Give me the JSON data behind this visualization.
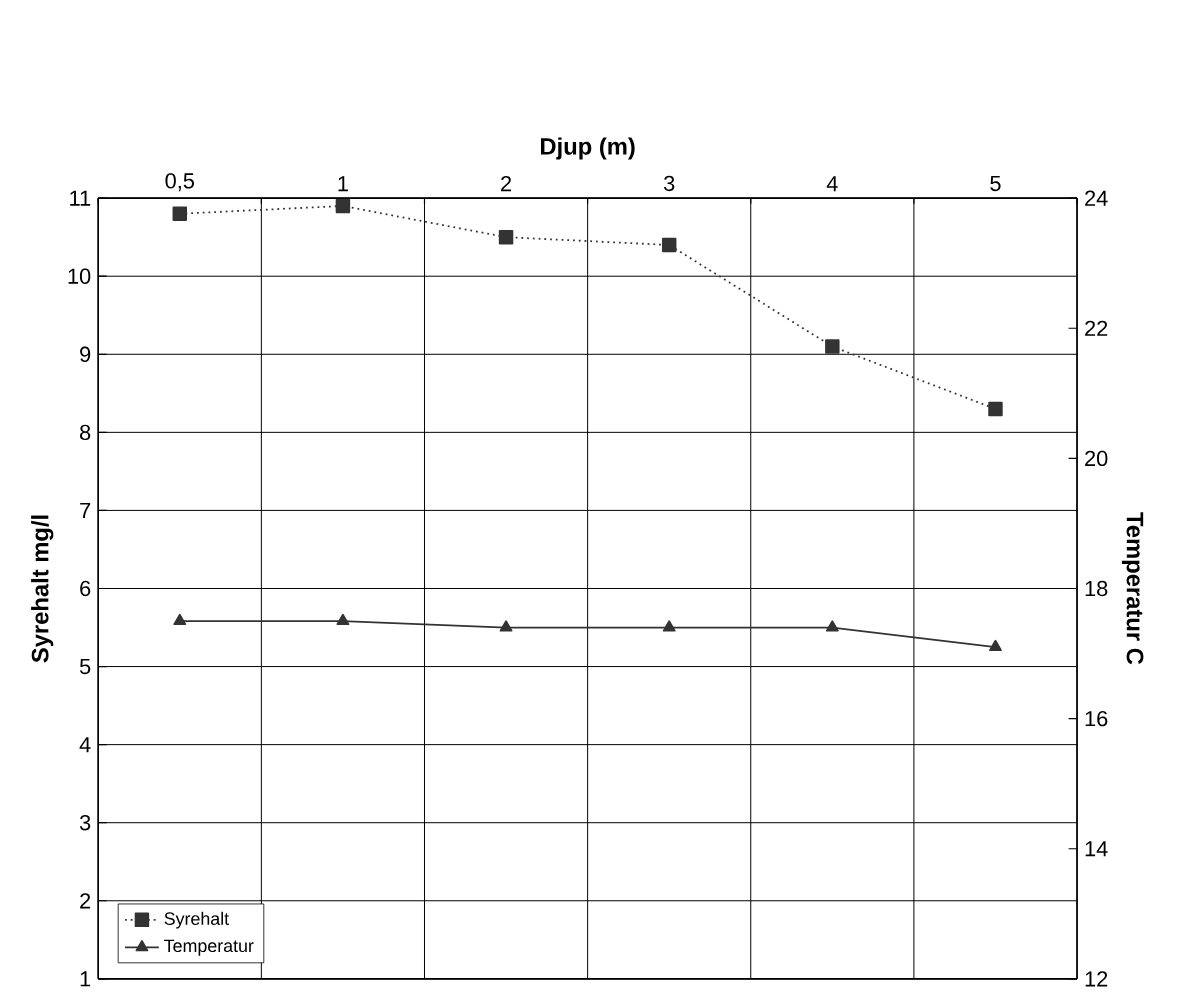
{
  "chart_data": {
    "type": "line",
    "xlabel": "Djup (m)",
    "ylabel": "Syrehalt mg/l",
    "y2label": "Temperatur C",
    "categories": [
      "0,5",
      "1",
      "2",
      "3",
      "4",
      "5"
    ],
    "series": [
      {
        "name": "Syrehalt",
        "color": "#333333",
        "values": [
          10.8,
          10.9,
          10.5,
          10.4,
          9.1,
          8.3
        ],
        "marker": "square",
        "line_style": "dotted"
      },
      {
        "name": "Temperatur",
        "color": "#333333",
        "values": [
          17.5,
          17.5,
          17.4,
          17.4,
          17.4,
          17.1
        ],
        "marker": "triangle",
        "line_style": "solid",
        "axis": "y2"
      }
    ],
    "ylim": [
      1,
      11
    ],
    "yticks": [
      1,
      2,
      3,
      4,
      5,
      6,
      7,
      8,
      9,
      10,
      11
    ],
    "y2lim": [
      12,
      24
    ],
    "y2ticks": [
      12,
      14,
      16,
      18,
      20,
      22,
      24
    ],
    "grid": true,
    "legend": "bottom left"
  }
}
